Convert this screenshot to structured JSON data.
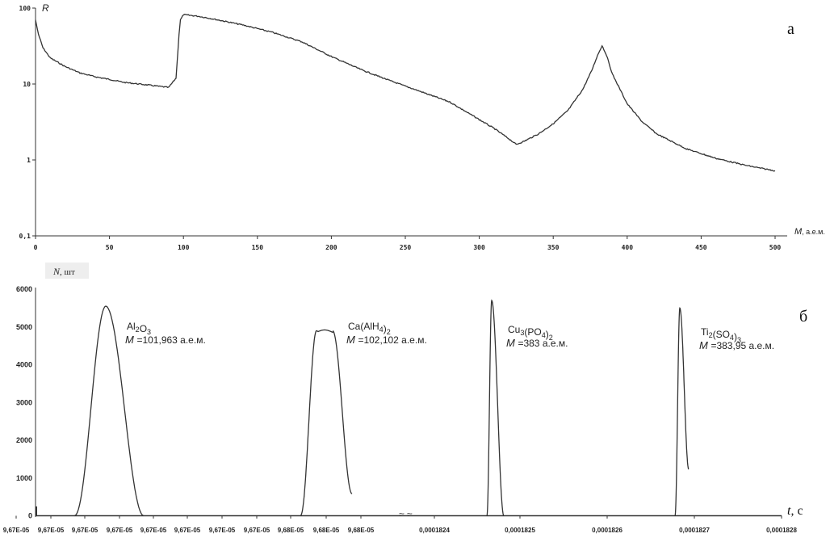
{
  "chart_data": [
    {
      "type": "line",
      "panel_label": "а",
      "ylabel": "R",
      "xlabel_var": "M",
      "xlabel_unit": ", а.е.м.",
      "yscale": "log",
      "xlim": [
        0,
        500
      ],
      "ylim": [
        0.1,
        100
      ],
      "xticks": [
        "0",
        "50",
        "100",
        "150",
        "200",
        "250",
        "300",
        "350",
        "400",
        "450",
        "500"
      ],
      "yticks": [
        {
          "value": 100,
          "label": "100"
        },
        {
          "value": 10,
          "label": "10"
        },
        {
          "value": 1,
          "label": "1"
        },
        {
          "value": 0.1,
          "label": "0,1"
        }
      ],
      "series": [
        {
          "x": [
            0,
            2,
            5,
            10,
            20,
            30,
            40,
            50,
            60,
            70,
            80,
            90,
            95,
            97,
            98,
            100,
            110,
            120,
            140,
            160,
            180,
            200,
            220,
            240,
            260,
            280,
            300,
            310,
            320,
            325,
            330,
            340,
            350,
            360,
            370,
            376,
            380,
            383,
            386,
            390,
            400,
            410,
            420,
            440,
            460,
            480,
            490,
            500
          ],
          "y": [
            70,
            45,
            30,
            22,
            17,
            14,
            12.5,
            11.5,
            10.5,
            10,
            9.5,
            9,
            12,
            45,
            70,
            82,
            78,
            72,
            60,
            48,
            36,
            23,
            15.5,
            11,
            8,
            5.8,
            3.4,
            2.6,
            1.9,
            1.6,
            1.75,
            2.2,
            3.0,
            4.5,
            8.5,
            15,
            24,
            32,
            24,
            13.5,
            5.5,
            3.2,
            2.2,
            1.4,
            1.05,
            0.85,
            0.78,
            0.72
          ]
        }
      ]
    },
    {
      "type": "line",
      "panel_label": "б",
      "ylabel_var": "N",
      "ylabel_unit": ", шт",
      "xlabel_var": "t",
      "xlabel_unit": ", с",
      "ylim": [
        0,
        6000
      ],
      "yticks": [
        "0",
        "1000",
        "2000",
        "3000",
        "4000",
        "5000",
        "6000"
      ],
      "xticks": [
        "9,67E-05",
        "9,67E-05",
        "9,67E-05",
        "9,67E-05",
        "9,67E-05",
        "9,67E-05",
        "9,67E-05",
        "9,67E-05",
        "9,68E-05",
        "9,68E-05",
        "9,68E-05",
        "0,0001824",
        "0,0001825",
        "0,0001826",
        "0,0001827",
        "0,0001828"
      ],
      "peaks": [
        {
          "formula": [
            "Al",
            "2",
            "O",
            "3"
          ],
          "mass": "=101,963 а.е.м.",
          "peak": 5550
        },
        {
          "formula": [
            "Ca(AlH",
            "4",
            ")",
            "2"
          ],
          "mass": "=102,102 а.е.м.",
          "peak": 4900
        },
        {
          "formula": [
            "Cu",
            "3",
            "(PO",
            "4",
            ")",
            "2"
          ],
          "mass": "=383 а.е.м.",
          "peak": 5700
        },
        {
          "formula": [
            "Ti",
            "2",
            "(SO",
            "4",
            ")",
            "3"
          ],
          "mass": "=383,95 а.е.м.",
          "peak": 5500
        }
      ],
      "mass_symbol": "M",
      "axis_break": "≈ ≈"
    }
  ]
}
